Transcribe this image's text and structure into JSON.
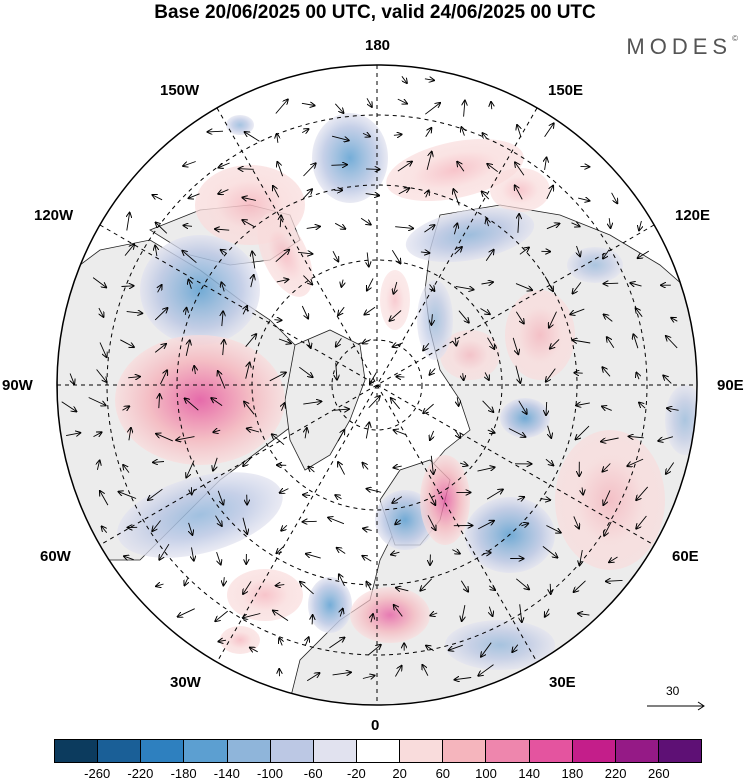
{
  "title": "Base 20/06/2025 00 UTC, valid 24/06/2025 00 UTC",
  "brand": "MODES",
  "brand_mark": "©",
  "longitude_labels": {
    "lon180": "180",
    "lon150W": "150W",
    "lon150E": "150E",
    "lon120W": "120W",
    "lon120E": "120E",
    "lon90W": "90W",
    "lon90E": "90E",
    "lon60W": "60W",
    "lon60E": "60E",
    "lon30W": "30W",
    "lon30E": "30E",
    "lon0": "0"
  },
  "reference_vector": {
    "label": "30",
    "value": 30
  },
  "colorbar": {
    "colors": [
      "#0c3b5e",
      "#1a5f97",
      "#2e80bf",
      "#5c9fd1",
      "#8fb5da",
      "#bcc8e4",
      "#e1e2ef",
      "#ffffff",
      "#f9dcdc",
      "#f5b5bd",
      "#ee86ad",
      "#e4549f",
      "#c41e8a",
      "#951a86",
      "#5e1075"
    ],
    "ticks": [
      "-260",
      "-220",
      "-180",
      "-140",
      "-100",
      "-60",
      "-20",
      "20",
      "60",
      "100",
      "140",
      "180",
      "220",
      "260"
    ]
  },
  "colors": {
    "land": "#ececec",
    "ocean": "#ffffff",
    "grid": "#000000",
    "coast": "#000000"
  }
}
